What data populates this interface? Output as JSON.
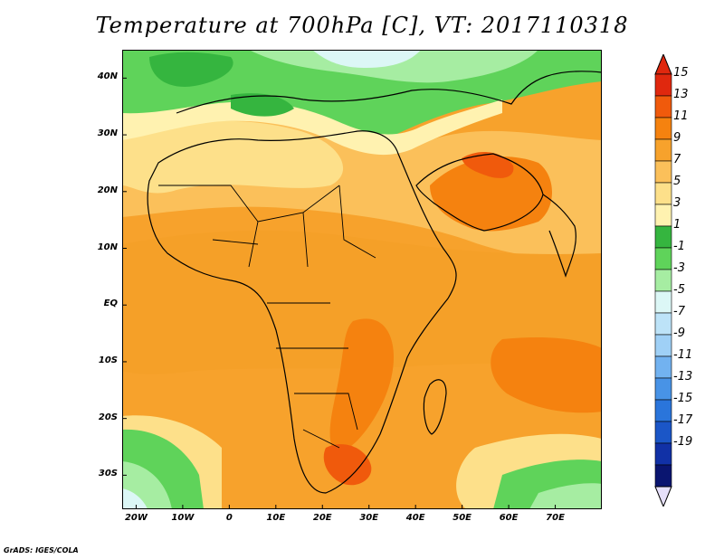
{
  "title": "Temperature at 700hPa [C], VT: 2017110318",
  "footer": "GrADS: IGES/COLA",
  "map": {
    "lon_range": [
      -23,
      80
    ],
    "lat_range": [
      -36,
      45
    ],
    "lat_labels": [
      {
        "lat": 40,
        "text": "40N"
      },
      {
        "lat": 30,
        "text": "30N"
      },
      {
        "lat": 20,
        "text": "20N"
      },
      {
        "lat": 10,
        "text": "10N"
      },
      {
        "lat": 0,
        "text": "EQ"
      },
      {
        "lat": -10,
        "text": "10S"
      },
      {
        "lat": -20,
        "text": "20S"
      },
      {
        "lat": -30,
        "text": "30S"
      }
    ],
    "lon_labels": [
      {
        "lon": -20,
        "text": "20W"
      },
      {
        "lon": -10,
        "text": "10W"
      },
      {
        "lon": 0,
        "text": "0"
      },
      {
        "lon": 10,
        "text": "10E"
      },
      {
        "lon": 20,
        "text": "20E"
      },
      {
        "lon": 30,
        "text": "30E"
      },
      {
        "lon": 40,
        "text": "40E"
      },
      {
        "lon": 50,
        "text": "50E"
      },
      {
        "lon": 60,
        "text": "60E"
      },
      {
        "lon": 70,
        "text": "70E"
      }
    ]
  },
  "colorbar": {
    "labels": [
      "15",
      "13",
      "11",
      "9",
      "7",
      "5",
      "3",
      "1",
      "-1",
      "-3",
      "-5",
      "-7",
      "-9",
      "-11",
      "-13",
      "-15",
      "-17",
      "-19"
    ],
    "colors": [
      "#e0280e",
      "#f05a0c",
      "#f5820f",
      "#f7a22c",
      "#fbc05a",
      "#fde08a",
      "#fff2b0",
      "#35b53f",
      "#5fd35a",
      "#a6eda2",
      "#dcf7f6",
      "#bde3f8",
      "#9fd0f6",
      "#72b2f0",
      "#4893e6",
      "#2a75db",
      "#1b56c7",
      "#1131a6",
      "#0a1570"
    ],
    "top_triangle": "#e0280e",
    "bottom_triangle": "#e6e0fa"
  }
}
